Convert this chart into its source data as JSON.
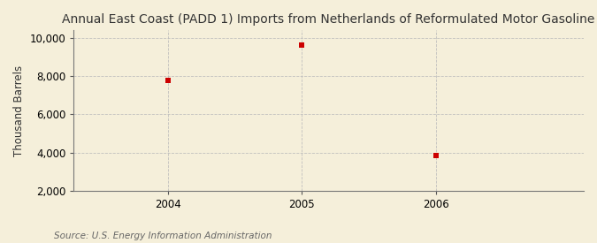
{
  "title": "Annual East Coast (PADD 1) Imports from Netherlands of Reformulated Motor Gasoline",
  "ylabel": "Thousand Barrels",
  "source": "Source: U.S. Energy Information Administration",
  "x": [
    2004,
    2005,
    2006
  ],
  "y": [
    7793,
    9648,
    3831
  ],
  "xlim": [
    2003.3,
    2007.1
  ],
  "ylim": [
    2000,
    10400
  ],
  "yticks": [
    2000,
    4000,
    6000,
    8000,
    10000
  ],
  "xticks": [
    2004,
    2005,
    2006
  ],
  "marker_color": "#cc0000",
  "marker": "s",
  "marker_size": 4,
  "bg_color": "#f5efda",
  "grid_color": "#bbbbbb",
  "title_fontsize": 10,
  "label_fontsize": 8.5,
  "tick_fontsize": 8.5,
  "source_fontsize": 7.5
}
